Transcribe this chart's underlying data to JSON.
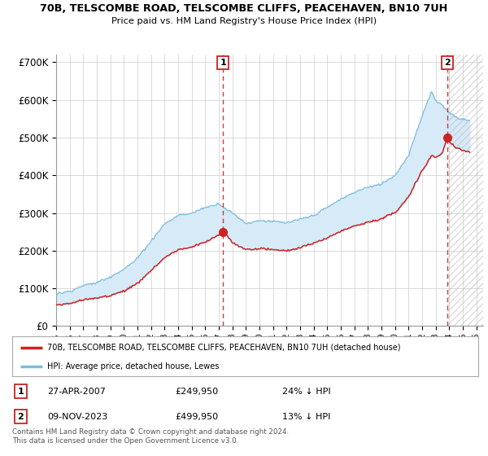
{
  "title1": "70B, TELSCOMBE ROAD, TELSCOMBE CLIFFS, PEACEHAVEN, BN10 7UH",
  "title2": "Price paid vs. HM Land Registry's House Price Index (HPI)",
  "ylabel_ticks": [
    "£0",
    "£100K",
    "£200K",
    "£300K",
    "£400K",
    "£500K",
    "£600K",
    "£700K"
  ],
  "ytick_values": [
    0,
    100000,
    200000,
    300000,
    400000,
    500000,
    600000,
    700000
  ],
  "ylim": [
    0,
    720000
  ],
  "xlim_start": 1995,
  "xlim_end": 2026.5,
  "hpi_color": "#7bbcde",
  "hpi_fill_color": "#d6eaf8",
  "price_color": "#cc2222",
  "vline_color": "#cc2222",
  "marker1_year": 2007.32,
  "marker1_price": 249950,
  "marker2_year": 2023.86,
  "marker2_price": 499950,
  "legend_label1": "70B, TELSCOMBE ROAD, TELSCOMBE CLIFFS, PEACEHAVEN, BN10 7UH (detached house)",
  "legend_label2": "HPI: Average price, detached house, Lewes",
  "table_row1": [
    "1",
    "27-APR-2007",
    "£249,950",
    "24% ↓ HPI"
  ],
  "table_row2": [
    "2",
    "09-NOV-2023",
    "£499,950",
    "13% ↓ HPI"
  ],
  "footer": "Contains HM Land Registry data © Crown copyright and database right 2024.\nThis data is licensed under the Open Government Licence v3.0.",
  "background_color": "#ffffff",
  "grid_color": "#cccccc",
  "hatch_color": "#bbbbbb"
}
